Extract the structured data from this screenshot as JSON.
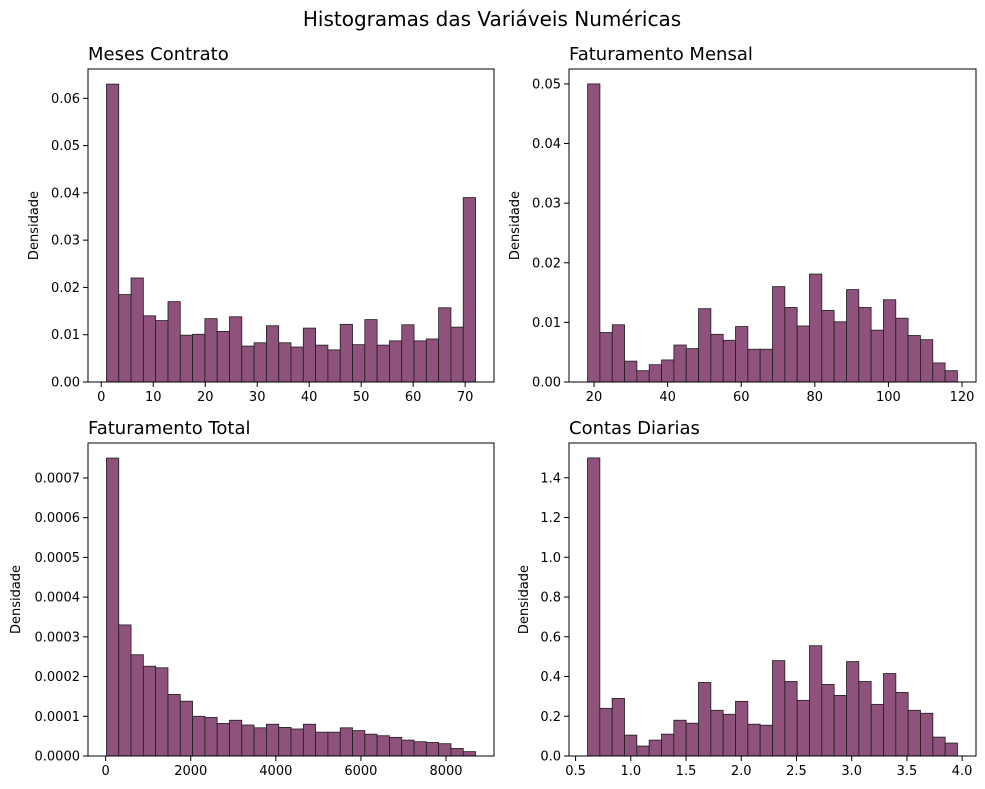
{
  "figure": {
    "suptitle": "Histogramas das Variáveis Numéricas"
  },
  "chart_data": [
    {
      "type": "bar",
      "title": "Meses Contrato",
      "xlabel": "",
      "ylabel": "Densidade",
      "bin_edges": [
        1.0,
        3.367,
        5.733,
        8.1,
        10.467,
        12.833,
        15.2,
        17.567,
        19.933,
        22.3,
        24.667,
        27.033,
        29.4,
        31.767,
        34.133,
        36.5,
        38.867,
        41.233,
        43.6,
        45.967,
        48.333,
        50.7,
        53.067,
        55.433,
        57.8,
        60.167,
        62.533,
        64.9,
        67.267,
        69.633,
        72.0
      ],
      "values": [
        0.063,
        0.0185,
        0.022,
        0.014,
        0.013,
        0.017,
        0.0099,
        0.0101,
        0.0134,
        0.0107,
        0.0138,
        0.0076,
        0.0083,
        0.0119,
        0.0083,
        0.0074,
        0.0114,
        0.0078,
        0.0068,
        0.0122,
        0.0079,
        0.0132,
        0.0078,
        0.0087,
        0.0121,
        0.0087,
        0.0091,
        0.0157,
        0.0116,
        0.039
      ],
      "xlim": [
        -2.55,
        75.55
      ],
      "ylim": [
        0,
        0.0662
      ],
      "xticks": [
        0,
        10,
        20,
        30,
        40,
        50,
        60,
        70
      ],
      "xtick_labels": [
        "0",
        "10",
        "20",
        "30",
        "40",
        "50",
        "60",
        "70"
      ],
      "yticks": [
        0,
        0.01,
        0.02,
        0.03,
        0.04,
        0.05,
        0.06
      ],
      "ytick_labels": [
        "0.00",
        "0.01",
        "0.02",
        "0.03",
        "0.04",
        "0.05",
        "0.06"
      ],
      "color": "#8e527c",
      "grid": false,
      "legend": "none"
    },
    {
      "type": "bar",
      "title": "Faturamento Mensal",
      "xlabel": "",
      "ylabel": "Densidade",
      "bin_edges": [
        18.25,
        21.6,
        24.95,
        28.3,
        31.65,
        35.0,
        38.35,
        41.7,
        45.05,
        48.4,
        51.75,
        55.1,
        58.45,
        61.8,
        65.15,
        68.5,
        71.85,
        75.2,
        78.55,
        81.9,
        85.25,
        88.6,
        91.95,
        95.3,
        98.65,
        102.0,
        105.35,
        108.7,
        112.05,
        115.4,
        118.75
      ],
      "values": [
        0.05,
        0.0083,
        0.0096,
        0.0035,
        0.0019,
        0.0029,
        0.0037,
        0.0062,
        0.0056,
        0.0123,
        0.008,
        0.007,
        0.0093,
        0.0055,
        0.0055,
        0.016,
        0.0125,
        0.0094,
        0.0181,
        0.012,
        0.0101,
        0.0155,
        0.0125,
        0.0087,
        0.0138,
        0.0107,
        0.0078,
        0.0071,
        0.0032,
        0.0019
      ],
      "xlim": [
        13.2,
        123.8
      ],
      "ylim": [
        0,
        0.0525
      ],
      "xticks": [
        20,
        40,
        60,
        80,
        100,
        120
      ],
      "xtick_labels": [
        "20",
        "40",
        "60",
        "80",
        "100",
        "120"
      ],
      "yticks": [
        0,
        0.01,
        0.02,
        0.03,
        0.04,
        0.05
      ],
      "ytick_labels": [
        "0.00",
        "0.01",
        "0.02",
        "0.03",
        "0.04",
        "0.05"
      ],
      "color": "#8e527c",
      "grid": false,
      "legend": "none"
    },
    {
      "type": "bar",
      "title": "Faturamento Total",
      "xlabel": "",
      "ylabel": "Densidade",
      "bin_edges": [
        18.8,
        308.0,
        597.2,
        886.4,
        1175.6,
        1464.8,
        1754.0,
        2043.2,
        2332.4,
        2621.6,
        2910.8,
        3200.0,
        3489.2,
        3778.4,
        4067.6,
        4356.8,
        4646.0,
        4935.2,
        5224.4,
        5513.6,
        5802.8,
        6092.0,
        6381.2,
        6670.4,
        6959.6,
        7248.8,
        7538.0,
        7827.2,
        8116.4,
        8405.6,
        8694.8
      ],
      "values": [
        0.00075,
        0.00033,
        0.000255,
        0.000226,
        0.000222,
        0.000155,
        0.000138,
        0.0001,
        9.7e-05,
        8.2e-05,
        9e-05,
        7.8e-05,
        7.1e-05,
        8e-05,
        7.2e-05,
        6.8e-05,
        8e-05,
        6e-05,
        6e-05,
        7.1e-05,
        6.4e-05,
        5.5e-05,
        5.1e-05,
        4.7e-05,
        4e-05,
        3.6e-05,
        3.4e-05,
        3.1e-05,
        1.9e-05,
        1.1e-05
      ],
      "xlim": [
        -415,
        9128
      ],
      "ylim": [
        0,
        0.000788
      ],
      "xticks": [
        0,
        2000,
        4000,
        6000,
        8000
      ],
      "xtick_labels": [
        "0",
        "2000",
        "4000",
        "6000",
        "8000"
      ],
      "yticks": [
        0,
        0.0001,
        0.0002,
        0.0003,
        0.0004,
        0.0005,
        0.0006,
        0.0007
      ],
      "ytick_labels": [
        "0.0000",
        "0.0001",
        "0.0002",
        "0.0003",
        "0.0004",
        "0.0005",
        "0.0006",
        "0.0007"
      ],
      "color": "#8e527c",
      "grid": false,
      "legend": "none"
    },
    {
      "type": "bar",
      "title": "Contas Diarias",
      "xlabel": "",
      "ylabel": "Densidade",
      "bin_edges": [
        0.608,
        0.7197,
        0.8313,
        0.943,
        1.0547,
        1.1663,
        1.278,
        1.3897,
        1.5013,
        1.613,
        1.7247,
        1.8363,
        1.948,
        2.0597,
        2.1713,
        2.283,
        2.3947,
        2.5063,
        2.618,
        2.7297,
        2.8413,
        2.953,
        3.0647,
        3.1763,
        3.288,
        3.3997,
        3.5113,
        3.623,
        3.7347,
        3.8463,
        3.958
      ],
      "values": [
        1.5,
        0.24,
        0.29,
        0.105,
        0.05,
        0.08,
        0.11,
        0.18,
        0.165,
        0.37,
        0.23,
        0.21,
        0.275,
        0.16,
        0.155,
        0.48,
        0.375,
        0.28,
        0.555,
        0.36,
        0.305,
        0.475,
        0.375,
        0.26,
        0.415,
        0.32,
        0.23,
        0.215,
        0.095,
        0.065
      ],
      "xlim": [
        0.4405,
        4.1255
      ],
      "ylim": [
        0,
        1.575
      ],
      "xticks": [
        0.5,
        1.0,
        1.5,
        2.0,
        2.5,
        3.0,
        3.5,
        4.0
      ],
      "xtick_labels": [
        "0.5",
        "1.0",
        "1.5",
        "2.0",
        "2.5",
        "3.0",
        "3.5",
        "4.0"
      ],
      "yticks": [
        0,
        0.2,
        0.4,
        0.6,
        0.8,
        1.0,
        1.2,
        1.4
      ],
      "ytick_labels": [
        "0.0",
        "0.2",
        "0.4",
        "0.6",
        "0.8",
        "1.0",
        "1.2",
        "1.4"
      ],
      "color": "#8e527c",
      "grid": false,
      "legend": "none"
    }
  ]
}
